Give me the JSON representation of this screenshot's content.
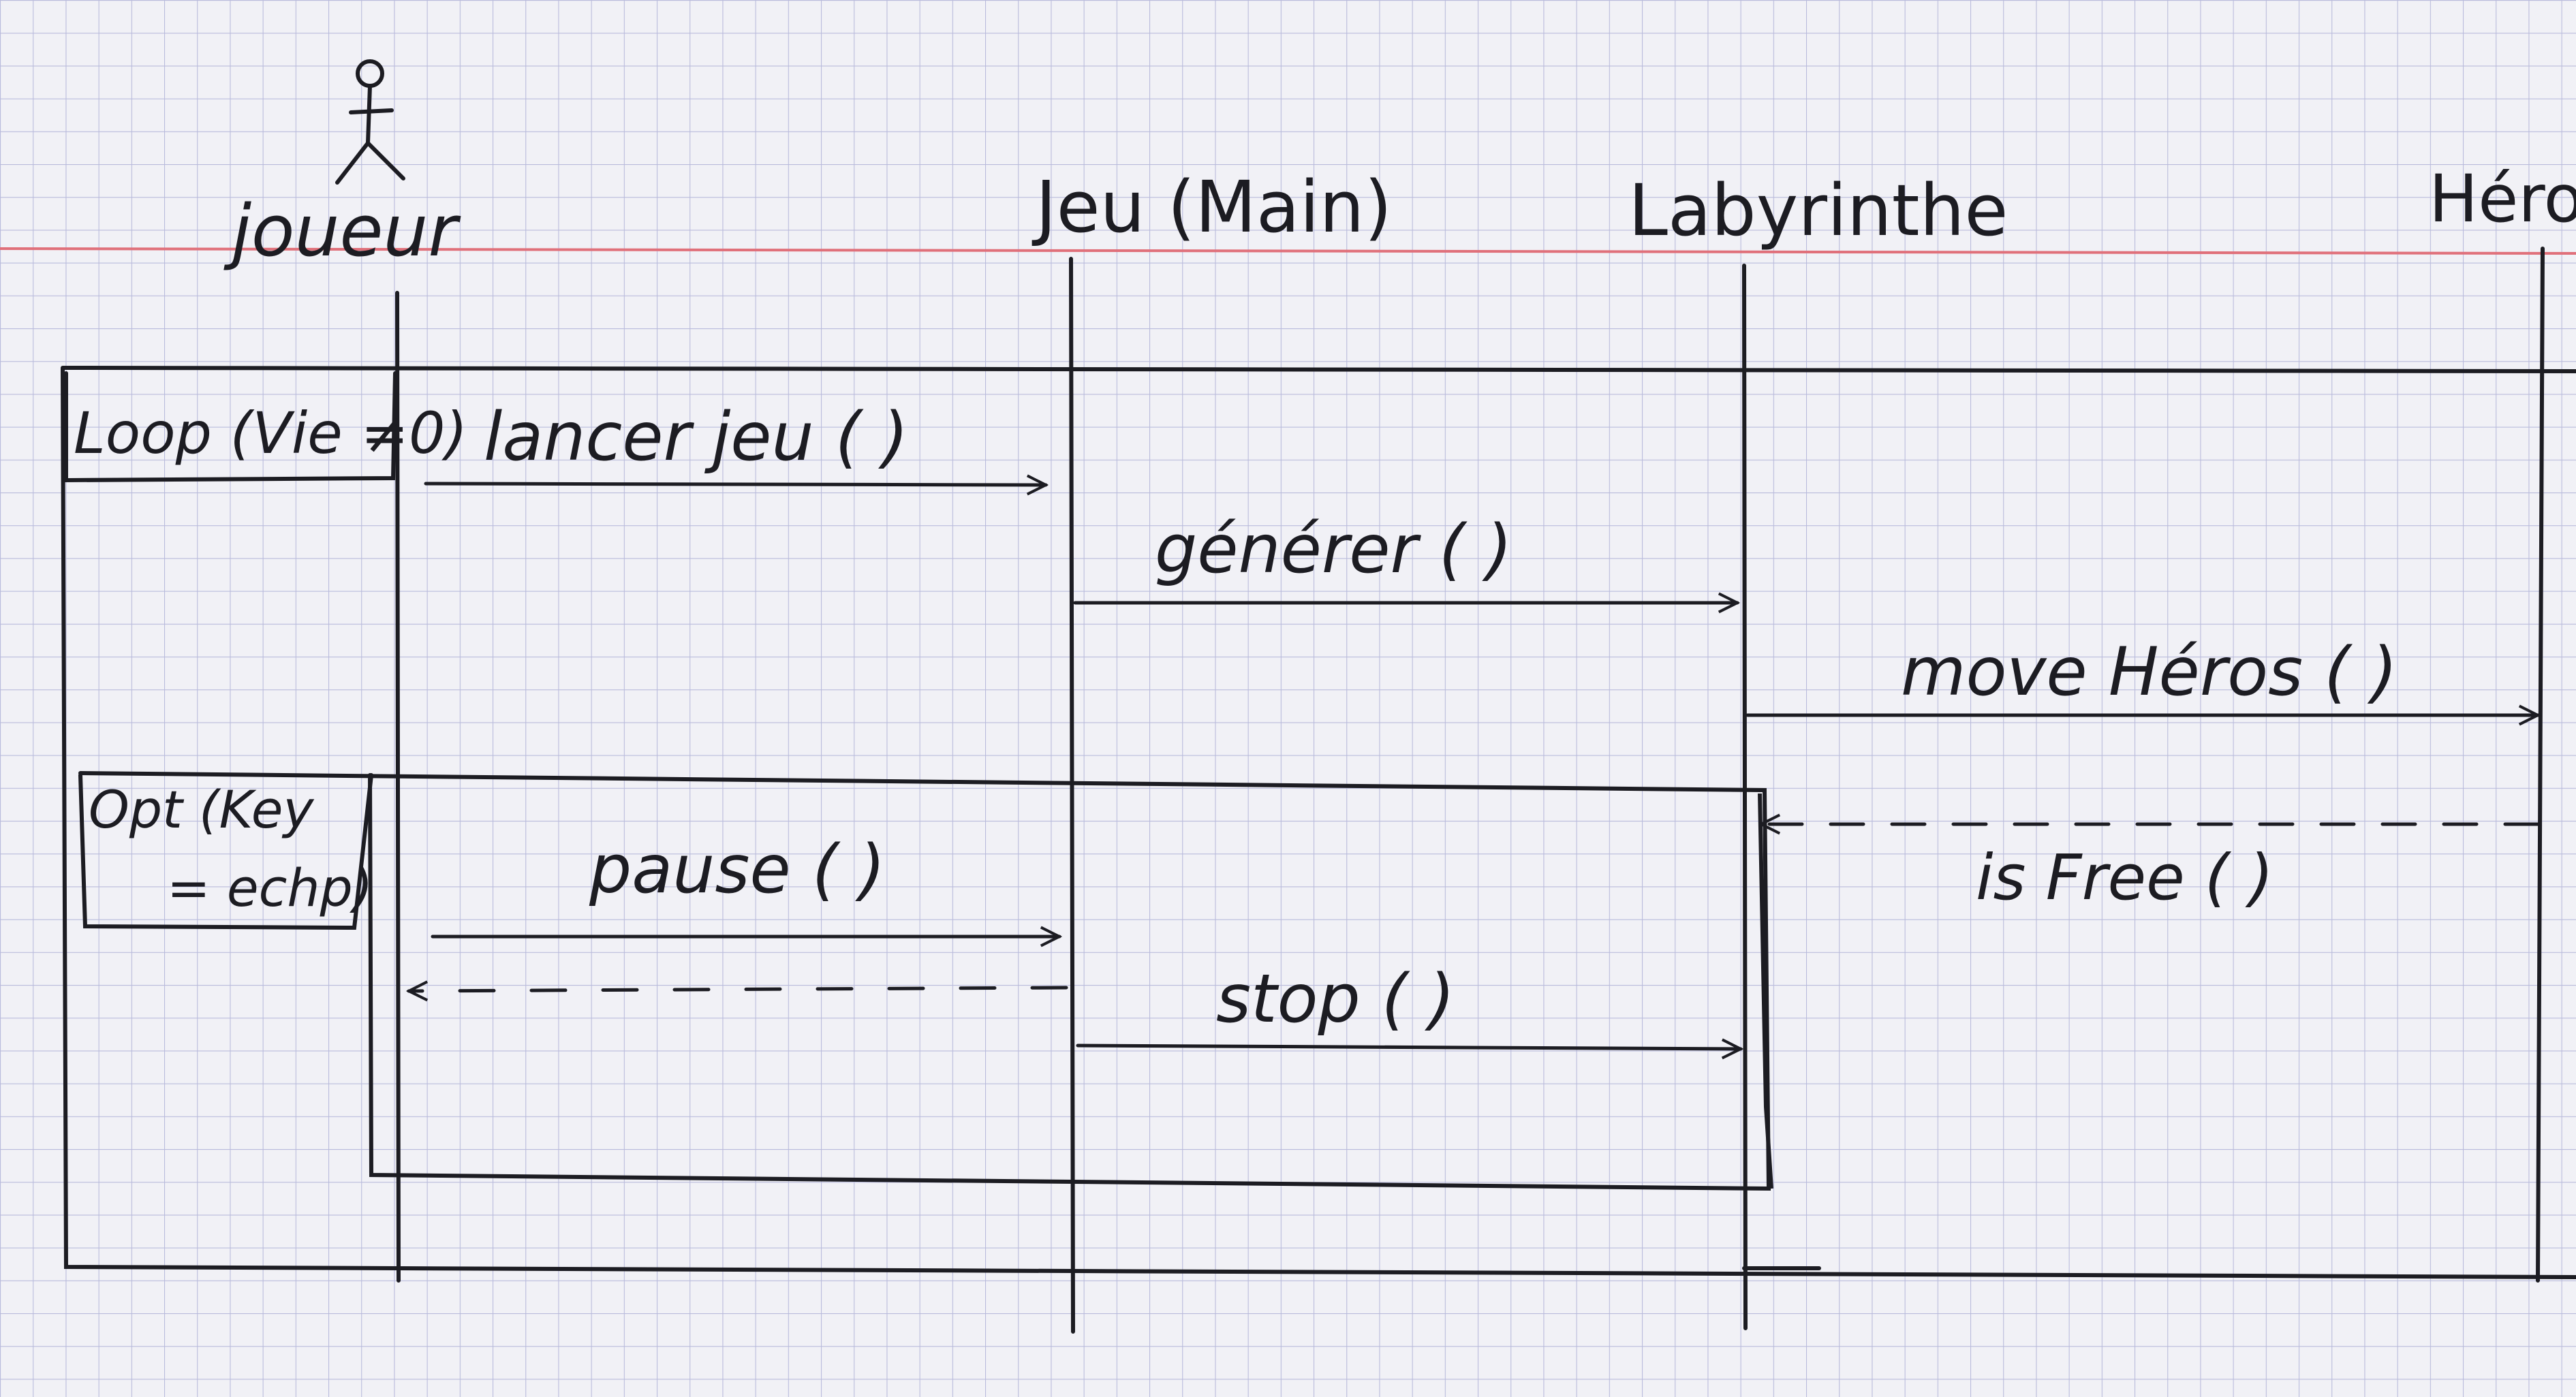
{
  "participants": [
    {
      "id": "joueur",
      "label": "joueur",
      "actor": true
    },
    {
      "id": "jeu",
      "label": "Jeu (Main)",
      "actor": false
    },
    {
      "id": "labyrinthe",
      "label": "Labyrinthe",
      "actor": false
    },
    {
      "id": "heros",
      "label": "Héro",
      "actor": false
    }
  ],
  "fragments": {
    "loop": {
      "label": "Loop (Vie ≠0)"
    },
    "opt": {
      "label_line1": "Opt (Key",
      "label_line2": "= echp)"
    }
  },
  "messages": [
    {
      "id": "lancer",
      "label": "lancer jeu ( )",
      "from": "joueur",
      "to": "jeu",
      "type": "sync"
    },
    {
      "id": "generer",
      "label": "générer ( )",
      "from": "jeu",
      "to": "labyrinthe",
      "type": "sync"
    },
    {
      "id": "move",
      "label": "move Héros ( )",
      "from": "labyrinthe",
      "to": "heros",
      "type": "sync"
    },
    {
      "id": "isfree",
      "label": "is Free ( )",
      "from": "heros",
      "to": "labyrinthe",
      "type": "return"
    },
    {
      "id": "pause",
      "label": "pause ( )",
      "from": "joueur",
      "to": "jeu",
      "type": "sync"
    },
    {
      "id": "pause-return",
      "label": "",
      "from": "jeu",
      "to": "joueur",
      "type": "return"
    },
    {
      "id": "stop",
      "label": "stop ( )",
      "from": "jeu",
      "to": "labyrinthe",
      "type": "sync"
    }
  ],
  "colors": {
    "paper": "#f1f1f6",
    "grid": "#b9bbdc",
    "margin_line": "#e0707a",
    "ink": "#1c1c22"
  }
}
